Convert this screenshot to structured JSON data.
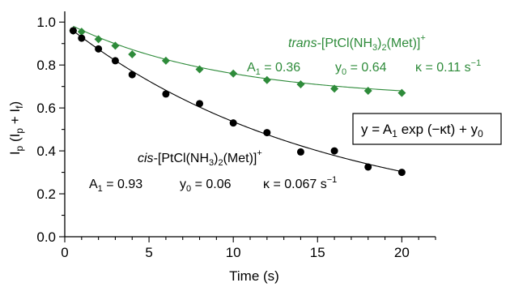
{
  "chart_data": {
    "type": "scatter",
    "xlabel": "Time (s)",
    "xlim": [
      0,
      22
    ],
    "ylim": [
      0.0,
      1.05
    ],
    "xticks": [
      "0",
      "5",
      "10",
      "15",
      "20"
    ],
    "yticks": [
      "0.0",
      "0.2",
      "0.4",
      "0.6",
      "0.8",
      "1.0"
    ],
    "grid": false,
    "series": [
      {
        "name": "trans-[PtCl(NH3)2(Met)]+",
        "marker": "diamond",
        "color": "#2e8b3a",
        "fit": {
          "A1": 0.36,
          "y0": 0.64,
          "kappa": 0.11
        },
        "x": [
          0.5,
          1,
          2,
          3,
          4,
          6,
          8,
          10,
          12,
          14,
          16,
          18,
          20
        ],
        "y": [
          0.96,
          0.955,
          0.92,
          0.89,
          0.85,
          0.82,
          0.78,
          0.76,
          0.73,
          0.71,
          0.69,
          0.68,
          0.67
        ]
      },
      {
        "name": "cis-[PtCl(NH3)2(Met)]+",
        "marker": "circle",
        "color": "#000000",
        "fit": {
          "A1": 0.93,
          "y0": 0.06,
          "kappa": 0.067
        },
        "x": [
          0.5,
          1,
          2,
          3,
          4,
          6,
          8,
          10,
          12,
          14,
          16,
          18,
          20
        ],
        "y": [
          0.96,
          0.925,
          0.875,
          0.82,
          0.755,
          0.665,
          0.62,
          0.53,
          0.485,
          0.395,
          0.4,
          0.325,
          0.3
        ]
      }
    ]
  },
  "labels": {
    "trans_prefix": "trans",
    "trans_rest": "-[PtCl(NH",
    "trans_sub3": "3",
    "trans_mid": ")",
    "trans_sub2": "2",
    "trans_end": "(Met)]",
    "trans_sup": "+",
    "trans_A1": "A",
    "trans_A1_sub": "1",
    "trans_A1_val": " = 0.36",
    "trans_y0": "y",
    "trans_y0_sub": "0",
    "trans_y0_val": " = 0.64",
    "trans_kappa": "κ = 0.11 s",
    "trans_kappa_sup": "−1",
    "cis_prefix": "cis",
    "cis_rest": "-[PtCl(NH",
    "cis_sub3": "3",
    "cis_mid": ")",
    "cis_sub2": "2",
    "cis_end": "(Met)]",
    "cis_sup": "+",
    "cis_A1": "A",
    "cis_A1_sub": "1",
    "cis_A1_val": " = 0.93",
    "cis_y0": "y",
    "cis_y0_sub": "0",
    "cis_y0_val": " = 0.06",
    "cis_kappa": "κ = 0.067 s",
    "cis_kappa_sup": "−1",
    "eq_y": "y = A",
    "eq_sub1": "1",
    "eq_mid": " exp (−κt) + y",
    "eq_sub0": "0",
    "ylabel_I": "I",
    "ylabel_p": "p",
    "ylabel_open": " (I",
    "ylabel_p2": "p",
    "ylabel_plus": " + I",
    "ylabel_f": "f",
    "ylabel_close": ")"
  }
}
